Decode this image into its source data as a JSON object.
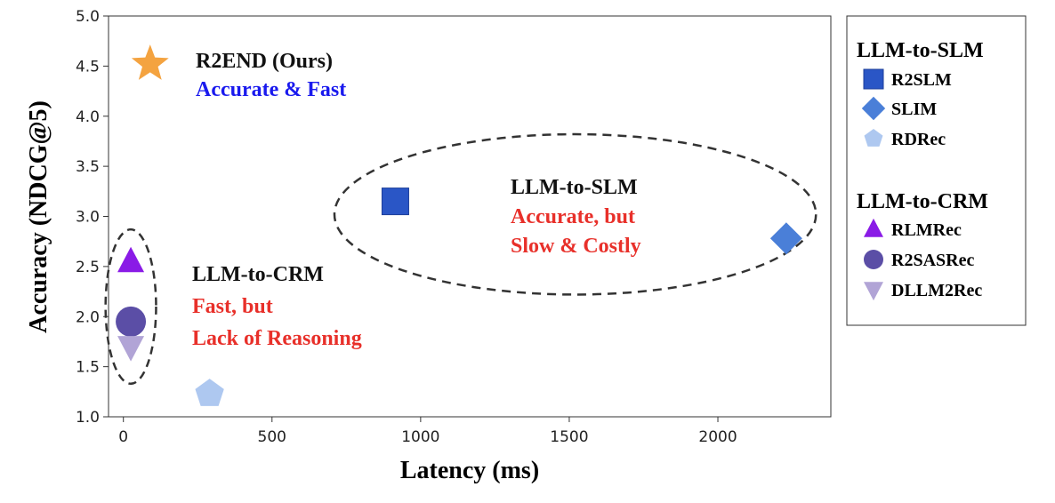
{
  "chart_data": {
    "type": "scatter",
    "title": "",
    "xlabel": "Latency (ms)",
    "ylabel": "Accuracy (NDCG@5)",
    "xlim": [
      -50,
      2380
    ],
    "ylim": [
      1.0,
      5.0
    ],
    "xticks": [
      0,
      500,
      1000,
      1500,
      2000
    ],
    "yticks": [
      1.0,
      1.5,
      2.0,
      2.5,
      3.0,
      3.5,
      4.0,
      4.5,
      5.0
    ],
    "xtick_labels": [
      "0",
      "500",
      "1000",
      "1500",
      "2000"
    ],
    "ytick_labels": [
      "1.0",
      "1.5",
      "2.0",
      "2.5",
      "3.0",
      "3.5",
      "4.0",
      "4.5",
      "5.0"
    ],
    "points": [
      {
        "name": "R2END (Ours)",
        "x": 90,
        "y": 4.52,
        "marker": "star",
        "color": "#f4a340"
      },
      {
        "name": "R2SLM",
        "x": 915,
        "y": 3.15,
        "marker": "square",
        "color": "#2a56c6"
      },
      {
        "name": "SLIM",
        "x": 2230,
        "y": 2.78,
        "marker": "diamond",
        "color": "#4a7fd8"
      },
      {
        "name": "RDRec",
        "x": 290,
        "y": 1.23,
        "marker": "pentagon",
        "color": "#aec8f0"
      },
      {
        "name": "RLMRec",
        "x": 25,
        "y": 2.55,
        "marker": "triangle-up",
        "color": "#8a1be6"
      },
      {
        "name": "R2SASRec",
        "x": 25,
        "y": 1.95,
        "marker": "circle",
        "color": "#5b4ea6"
      },
      {
        "name": "DLLM2Rec",
        "x": 25,
        "y": 1.7,
        "marker": "triangle-down",
        "color": "#b1a4d6"
      }
    ],
    "annotations": {
      "ours": {
        "title": "R2END (Ours)",
        "subtitle": "Accurate & Fast"
      },
      "slm": {
        "title": "LLM-to-SLM",
        "line1": "Accurate, but",
        "line2": "Slow & Costly"
      },
      "crm": {
        "title": "LLM-to-CRM",
        "line1": "Fast, but",
        "line2": "Lack of Reasoning"
      }
    },
    "legend": {
      "location": "right",
      "groups": [
        {
          "title": "LLM-to-SLM",
          "items": [
            "R2SLM",
            "SLIM",
            "RDRec"
          ]
        },
        {
          "title": "LLM-to-CRM",
          "items": [
            "RLMRec",
            "R2SASRec",
            "DLLM2Rec"
          ]
        }
      ]
    }
  }
}
